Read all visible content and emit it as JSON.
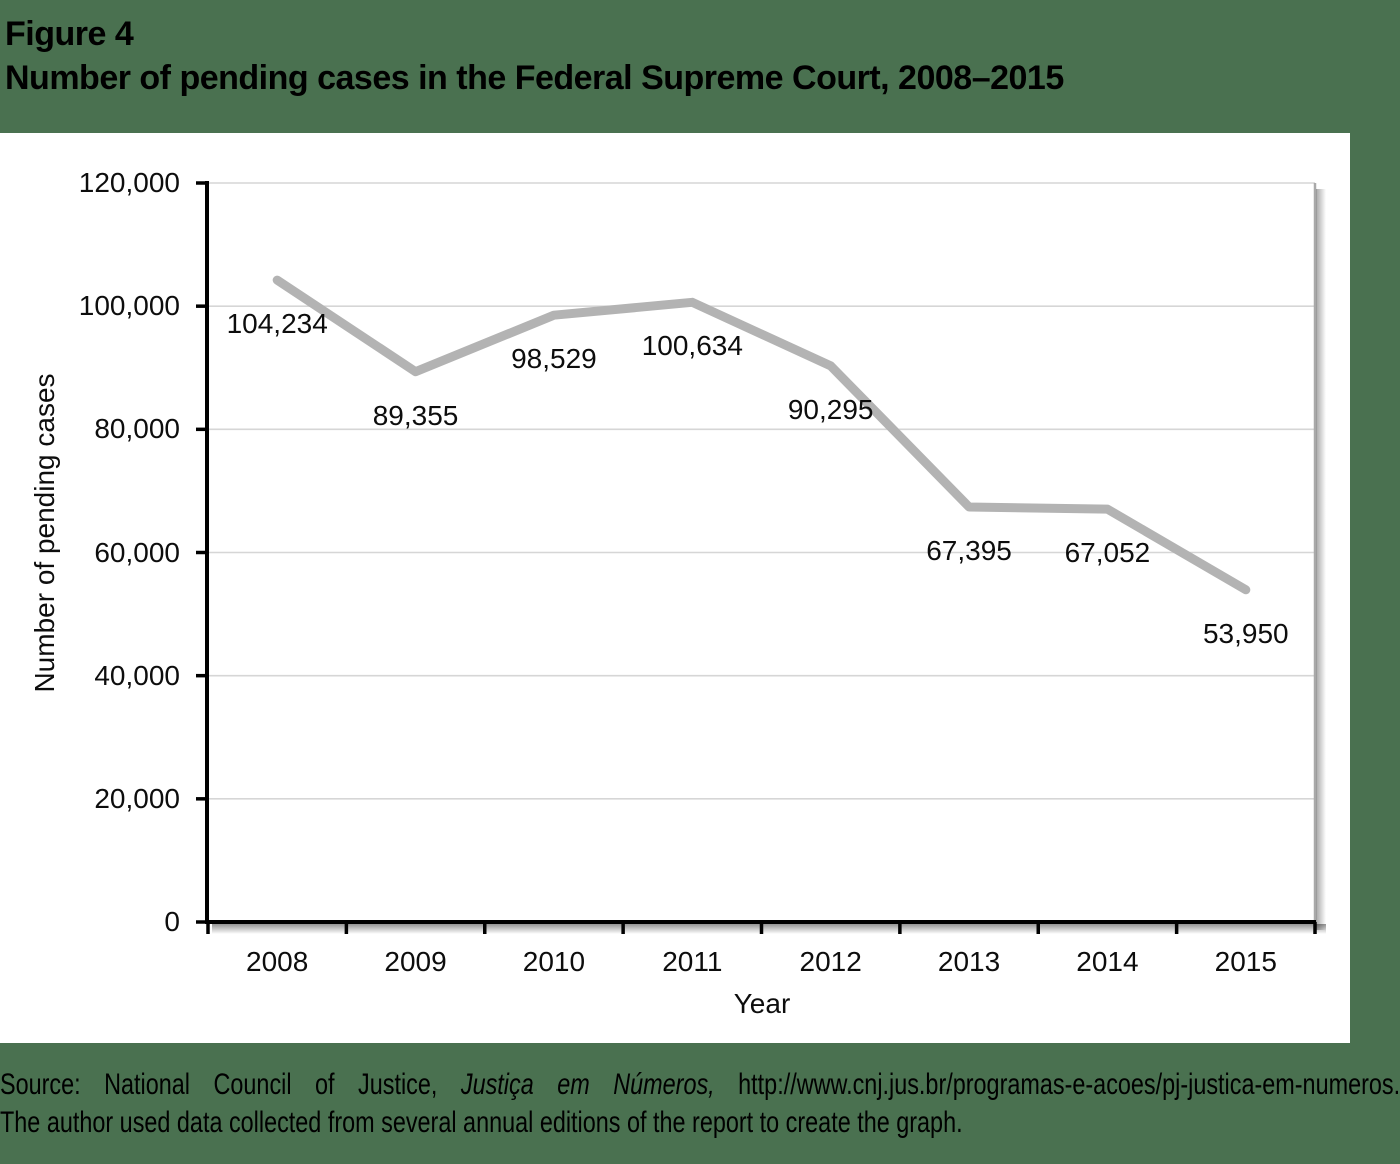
{
  "page": {
    "figure_label": "Figure 4",
    "figure_title": "Number of pending cases in the Federal Supreme Court, 2008–2015",
    "source": {
      "line1_prefix": "Source: National Council of Justice, ",
      "line1_italic": "Justiça em Números,",
      "line1_suffix": " http://www.cnj.jus.br/programas-e-acoes/pj-justica-em-numeros.",
      "line2": "The author used data collected from several annual editions of the report to create the graph."
    }
  },
  "colors": {
    "page_background": "#4a7150",
    "chart_background": "#ffffff",
    "line": "#b3b3b3",
    "gridline": "#d6d6d6",
    "frame": "#a9a9a9",
    "axis": "#000000",
    "text": "#0d0d0d"
  },
  "chart_data": {
    "type": "line",
    "title": "Number of pending cases in the Federal Supreme Court, 2008–2015",
    "xlabel": "Year",
    "ylabel": "Number of pending cases",
    "categories": [
      "2008",
      "2009",
      "2010",
      "2011",
      "2012",
      "2013",
      "2014",
      "2015"
    ],
    "values": [
      104234,
      89355,
      98529,
      100634,
      90295,
      67395,
      67052,
      53950
    ],
    "value_labels": [
      "104,234",
      "89,355",
      "98,529",
      "100,634",
      "90,295",
      "67,395",
      "67,052",
      "53,950"
    ],
    "ylim": [
      0,
      120000
    ],
    "ytick_step": 20000,
    "ytick_labels": [
      "0",
      "20,000",
      "40,000",
      "60,000",
      "80,000",
      "100,000",
      "120,000"
    ],
    "grid": "horizontal",
    "legend": "none"
  }
}
